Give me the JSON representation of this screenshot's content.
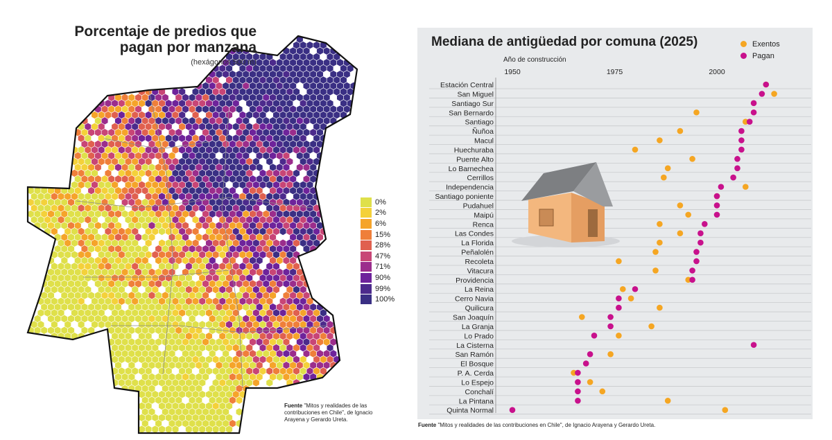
{
  "map": {
    "title_line1": "Porcentaje de predios que",
    "title_line2": "pagan por manzana",
    "subtitle": "(hexágonos 500 m)",
    "legend": [
      {
        "label": "0%",
        "color": "#dfe04a"
      },
      {
        "label": "2%",
        "color": "#f4d13a"
      },
      {
        "label": "6%",
        "color": "#f5a42a"
      },
      {
        "label": "15%",
        "color": "#ef7f3a"
      },
      {
        "label": "28%",
        "color": "#e0604f"
      },
      {
        "label": "47%",
        "color": "#c84576"
      },
      {
        "label": "71%",
        "color": "#9b2d8c"
      },
      {
        "label": "90%",
        "color": "#6e239b"
      },
      {
        "label": "99%",
        "color": "#4c2a8c"
      },
      {
        "label": "100%",
        "color": "#3a2f84"
      }
    ],
    "source_bold": "Fuente",
    "source_text": "\"Mitos y realidades de las contribuciones en Chile\", de Ignacio Arayena y Gerardo Ureta."
  },
  "chart": {
    "title": "Mediana de antigüedad por comuna (2025)",
    "xlabel": "Año de construcción",
    "source_bold": "Fuente",
    "source_text": "\"Mitos y realidades de las contribuciones en Chile\", de Ignacio Arayena y Gerardo Ureta.",
    "colors": {
      "exentos": "#f5a623",
      "pagan": "#c8118c"
    }
  },
  "chart_data": {
    "type": "scatter",
    "title": "Mediana de antigüedad por comuna (2025)",
    "xlabel": "Año de construcción",
    "xlim": [
      1950,
      2000
    ],
    "xticks": [
      1950,
      1975,
      2000
    ],
    "categories": [
      "Estación Central",
      "San Miguel",
      "Santiago Sur",
      "San Bernardo",
      "Santiago",
      "Ñuñoa",
      "Macul",
      "Huechuraba",
      "Puente Alto",
      "Lo Barnechea",
      "Cerrillos",
      "Independencia",
      "Santiago poniente",
      "Pudahuel",
      "Maipú",
      "Renca",
      "Las Condes",
      "La Florida",
      "Peñalolén",
      "Recoleta",
      "Vitacura",
      "Providencia",
      "La Reina",
      "Cerro Navia",
      "Quilicura",
      "San Joaquín",
      "La Granja",
      "Lo Prado",
      "La Cisterna",
      "San Ramón",
      "El Bosque",
      "P. A. Cerda",
      "Lo Espejo",
      "Conchalí",
      "La Pintana",
      "Quinta Normal"
    ],
    "series": [
      {
        "name": "Exentos",
        "values": [
          2012,
          2014,
          null,
          1995,
          2007,
          1991,
          1986,
          1980,
          1994,
          1988,
          1987,
          2007,
          2000,
          1991,
          1993,
          1986,
          1991,
          1986,
          1985,
          1976,
          1985,
          1993,
          1977,
          1979,
          1986,
          1967,
          1984,
          1976,
          null,
          1974,
          null,
          1965,
          1969,
          1972,
          1988,
          2002
        ]
      },
      {
        "name": "Pagan",
        "values": [
          2012,
          2011,
          2009,
          2009,
          2008,
          2006,
          2006,
          2006,
          2005,
          2005,
          2004,
          2001,
          2000,
          2000,
          2000,
          1997,
          1996,
          1996,
          1995,
          1995,
          1994,
          1994,
          1980,
          1976,
          1976,
          1974,
          1974,
          1970,
          2009,
          1969,
          1968,
          1966,
          1966,
          1966,
          1966,
          1950
        ]
      }
    ]
  }
}
